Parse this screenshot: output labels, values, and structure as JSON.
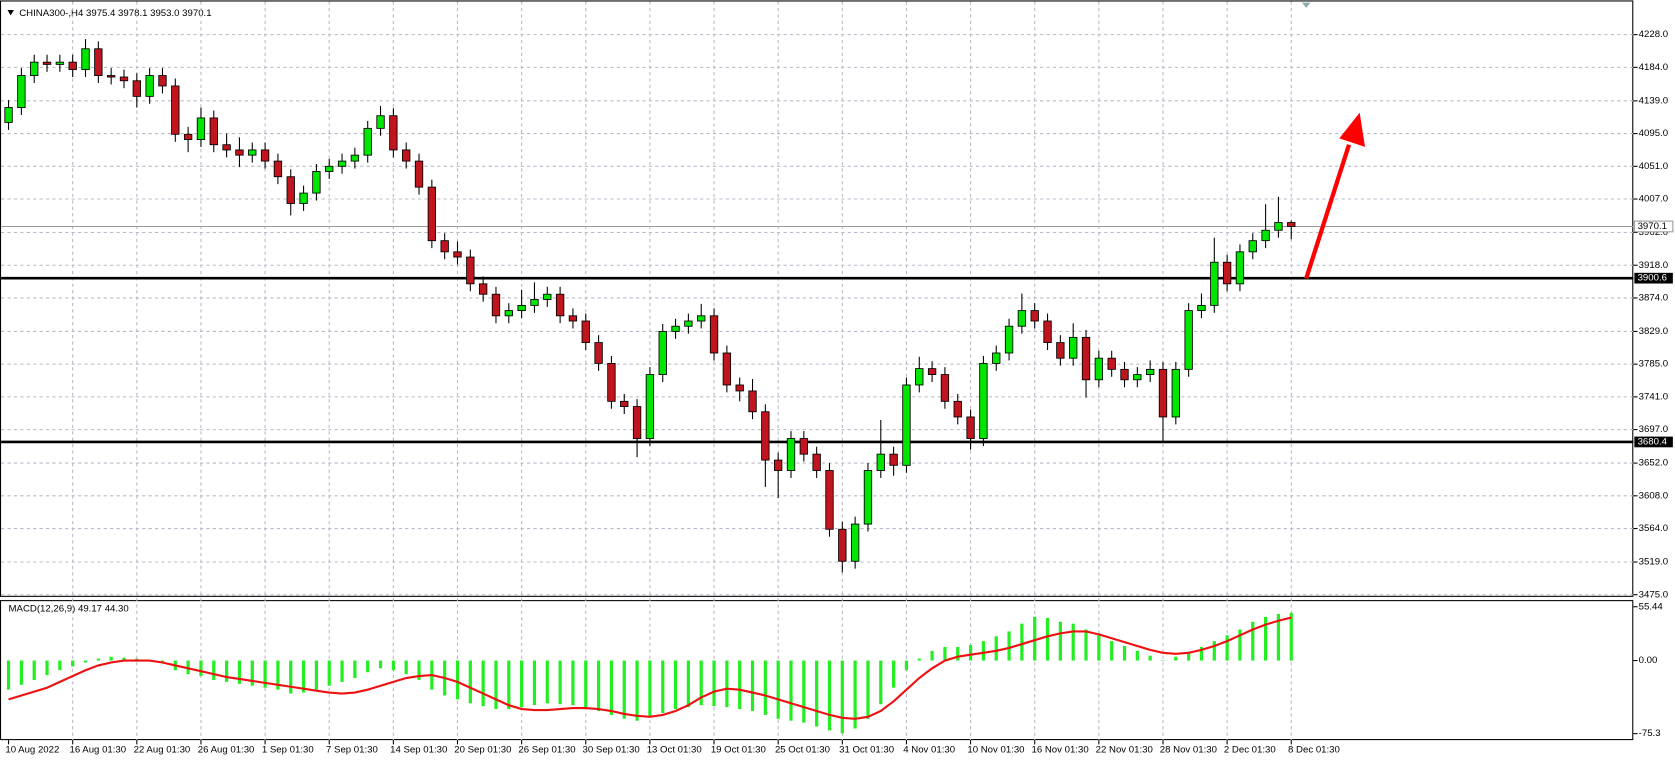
{
  "chart_data": [
    {
      "type": "candlestick",
      "title": "CHINA300-,H4",
      "ohlc_label": "3975.4 3978.1 3953.0 3970.1",
      "categories": [
        "10 Aug 2022",
        null,
        null,
        null,
        null,
        "16 Aug 01:30",
        null,
        null,
        null,
        null,
        "22 Aug 01:30",
        null,
        null,
        null,
        null,
        "26 Aug 01:30",
        null,
        null,
        null,
        null,
        "1 Sep 01:30",
        null,
        null,
        null,
        null,
        "7 Sep 01:30",
        null,
        null,
        null,
        null,
        "14 Sep 01:30",
        null,
        null,
        null,
        null,
        "20 Sep 01:30",
        null,
        null,
        null,
        null,
        "26 Sep 01:30",
        null,
        null,
        null,
        null,
        "30 Sep 01:30",
        null,
        null,
        null,
        null,
        "13 Oct 01:30",
        null,
        null,
        null,
        null,
        "19 Oct 01:30",
        null,
        null,
        null,
        null,
        "25 Oct 01:30",
        null,
        null,
        null,
        null,
        "31 Oct 01:30",
        null,
        null,
        null,
        null,
        "4 Nov 01:30",
        null,
        null,
        null,
        null,
        "10 Nov 01:30",
        null,
        null,
        null,
        null,
        "16 Nov 01:30",
        null,
        null,
        null,
        null,
        "22 Nov 01:30",
        null,
        null,
        null,
        null,
        "28 Nov 01:30",
        null,
        null,
        null,
        null,
        "2 Dec 01:30",
        null,
        null,
        null,
        null,
        "8 Dec 01:30"
      ],
      "open": [
        4110,
        4130,
        4173,
        4191,
        4188,
        4191,
        4181,
        4209,
        4173,
        4171,
        4166,
        4145,
        4173,
        4159,
        4094,
        4087,
        4116,
        4080,
        4073,
        4066,
        4073,
        4058,
        4037,
        4001,
        4015,
        4044,
        4051,
        4058,
        4066,
        4102,
        4119,
        4073,
        4058,
        4023,
        3951,
        3936,
        3929,
        3893,
        3879,
        3850,
        3857,
        3864,
        3872,
        3879,
        3850,
        3843,
        3814,
        3786,
        3735,
        3728,
        3685,
        3771,
        3829,
        3836,
        3843,
        3850,
        3800,
        3757,
        3749,
        3721,
        3656,
        3642,
        3685,
        3664,
        3642,
        3563,
        3520,
        3570,
        3642,
        3664,
        3649,
        3757,
        3779,
        3771,
        3735,
        3714,
        3685,
        3786,
        3800,
        3836,
        3857,
        3843,
        3814,
        3793,
        3821,
        3764,
        3793,
        3778,
        3764,
        3771,
        3778,
        3714,
        3778,
        3857,
        3864,
        3922,
        3893,
        3936,
        3951,
        3965,
        3975.4
      ],
      "high": [
        4140,
        4183,
        4201,
        4201,
        4201,
        4201,
        4222,
        4219,
        4183,
        4181,
        4176,
        4183,
        4183,
        4169,
        4104,
        4130,
        4126,
        4095,
        4090,
        4083,
        4083,
        4068,
        4047,
        4025,
        4054,
        4061,
        4068,
        4076,
        4112,
        4132,
        4129,
        4083,
        4068,
        4033,
        3961,
        3950,
        3939,
        3903,
        3889,
        3867,
        3885,
        3895,
        3889,
        3889,
        3860,
        3853,
        3824,
        3796,
        3745,
        3738,
        3781,
        3839,
        3846,
        3853,
        3866,
        3860,
        3810,
        3767,
        3765,
        3731,
        3666,
        3695,
        3695,
        3674,
        3652,
        3573,
        3580,
        3652,
        3710,
        3674,
        3767,
        3795,
        3789,
        3781,
        3745,
        3724,
        3796,
        3810,
        3846,
        3880,
        3867,
        3853,
        3824,
        3840,
        3831,
        3803,
        3803,
        3788,
        3781,
        3790,
        3788,
        3788,
        3867,
        3880,
        3955,
        3932,
        3946,
        3961,
        4000,
        4010,
        3978.1
      ],
      "low": [
        4100,
        4120,
        4163,
        4178,
        4178,
        4171,
        4171,
        4163,
        4161,
        4156,
        4130,
        4135,
        4149,
        4084,
        4070,
        4077,
        4070,
        4063,
        4050,
        4056,
        4048,
        4027,
        3985,
        3991,
        4005,
        4034,
        4041,
        4048,
        4056,
        4092,
        4063,
        4048,
        4013,
        3941,
        3926,
        3919,
        3883,
        3869,
        3840,
        3840,
        3847,
        3854,
        3862,
        3840,
        3833,
        3804,
        3776,
        3725,
        3718,
        3660,
        3675,
        3761,
        3819,
        3826,
        3833,
        3790,
        3747,
        3735,
        3711,
        3620,
        3605,
        3632,
        3654,
        3632,
        3553,
        3505,
        3510,
        3560,
        3632,
        3635,
        3639,
        3747,
        3761,
        3725,
        3704,
        3670,
        3675,
        3776,
        3790,
        3826,
        3833,
        3804,
        3783,
        3783,
        3740,
        3754,
        3768,
        3754,
        3754,
        3761,
        3680,
        3704,
        3768,
        3847,
        3854,
        3883,
        3883,
        3926,
        3941,
        3955,
        3953.0
      ],
      "close": [
        4130,
        4173,
        4191,
        4188,
        4191,
        4181,
        4209,
        4173,
        4171,
        4166,
        4145,
        4173,
        4159,
        4094,
        4087,
        4116,
        4080,
        4073,
        4066,
        4073,
        4058,
        4037,
        4001,
        4015,
        4044,
        4051,
        4058,
        4066,
        4102,
        4119,
        4073,
        4058,
        4023,
        3951,
        3936,
        3929,
        3893,
        3879,
        3850,
        3857,
        3864,
        3872,
        3879,
        3850,
        3843,
        3814,
        3786,
        3735,
        3728,
        3685,
        3771,
        3829,
        3836,
        3843,
        3850,
        3800,
        3757,
        3749,
        3721,
        3656,
        3642,
        3685,
        3664,
        3642,
        3563,
        3520,
        3570,
        3642,
        3664,
        3649,
        3757,
        3779,
        3771,
        3735,
        3714,
        3685,
        3786,
        3800,
        3836,
        3857,
        3843,
        3814,
        3793,
        3821,
        3764,
        3793,
        3778,
        3764,
        3771,
        3778,
        3714,
        3778,
        3857,
        3864,
        3922,
        3893,
        3936,
        3951,
        3965,
        3975.4,
        3970.1
      ],
      "up_color": "#00e600",
      "down_color": "#c0141e",
      "ylim": [
        3472.1,
        4274
      ],
      "yticks": [
        {
          "value": 4228,
          "label": "4228.0"
        },
        {
          "value": 4184,
          "label": "4184.0"
        },
        {
          "value": 4139,
          "label": "4139.0"
        },
        {
          "value": 4095,
          "label": "4095.0"
        },
        {
          "value": 4051,
          "label": "4051.0"
        },
        {
          "value": 4007,
          "label": "4007.0"
        },
        {
          "value": 3962,
          "label": "3962.0"
        },
        {
          "value": 3918,
          "label": "3918.0"
        },
        {
          "value": 3874,
          "label": "3874.0"
        },
        {
          "value": 3829,
          "label": "3829.0"
        },
        {
          "value": 3785,
          "label": "3785.0"
        },
        {
          "value": 3741,
          "label": "3741.0"
        },
        {
          "value": 3697,
          "label": "3697.0"
        },
        {
          "value": 3652,
          "label": "3652.0"
        },
        {
          "value": 3608,
          "label": "3608.0"
        },
        {
          "value": 3564,
          "label": "3564.0"
        },
        {
          "value": 3519,
          "label": "3519.0"
        },
        {
          "value": 3475,
          "label": "3475.0"
        }
      ],
      "hlines": [
        3900.6,
        3680.4
      ],
      "grid": true
    },
    {
      "type": "macd",
      "title": "MACD(12,26,9)",
      "values_label": "49.17 44.30",
      "series": [
        {
          "color": "#22ee22",
          "values": [
            -30,
            -25,
            -20,
            -15,
            -10,
            -6,
            -2,
            2,
            4,
            3,
            2,
            0,
            -3,
            -10,
            -14,
            -16,
            -20,
            -22,
            -24,
            -26,
            -28,
            -30,
            -34,
            -33,
            -30,
            -26,
            -22,
            -18,
            -12,
            -8,
            -10,
            -14,
            -20,
            -30,
            -36,
            -40,
            -44,
            -47,
            -50,
            -50,
            -48,
            -46,
            -44,
            -45,
            -46,
            -48,
            -52,
            -56,
            -60,
            -62,
            -58,
            -54,
            -50,
            -48,
            -46,
            -47,
            -48,
            -50,
            -52,
            -56,
            -60,
            -62,
            -64,
            -68,
            -72,
            -75,
            -70,
            -60,
            -45,
            -28,
            -10,
            2,
            10,
            14,
            14,
            16,
            20,
            25,
            30,
            38,
            45,
            44,
            40,
            38,
            32,
            26,
            20,
            15,
            10,
            5,
            0,
            4,
            8,
            14,
            20,
            26,
            32,
            40,
            45,
            48,
            49.17
          ]
        },
        {
          "color": "#ee1111",
          "values": [
            -40,
            -36,
            -32,
            -28,
            -22,
            -16,
            -10,
            -5,
            -2,
            0,
            0,
            0,
            -2,
            -5,
            -8,
            -11,
            -14,
            -17,
            -19,
            -21,
            -23,
            -25,
            -27,
            -29,
            -31,
            -33,
            -34,
            -33,
            -30,
            -26,
            -22,
            -18,
            -16,
            -15,
            -18,
            -22,
            -28,
            -34,
            -40,
            -46,
            -50,
            -51,
            -51,
            -50,
            -49,
            -49,
            -50,
            -52,
            -55,
            -57,
            -58,
            -56,
            -52,
            -46,
            -38,
            -32,
            -29,
            -30,
            -33,
            -36,
            -40,
            -44,
            -48,
            -52,
            -56,
            -59,
            -60,
            -58,
            -52,
            -42,
            -30,
            -18,
            -8,
            0,
            4,
            6,
            8,
            10,
            13,
            17,
            21,
            25,
            28,
            30,
            30,
            27,
            23,
            19,
            15,
            11,
            8,
            7,
            8,
            11,
            15,
            20,
            26,
            32,
            37,
            41,
            44.3
          ]
        }
      ],
      "ylim": [
        -82,
        61.2
      ],
      "yticks": [
        {
          "value": 55.44,
          "label": "55.44"
        },
        {
          "value": 0,
          "label": "0.00"
        },
        {
          "value": -75.3,
          "label": "-75.3"
        }
      ]
    }
  ]
}
